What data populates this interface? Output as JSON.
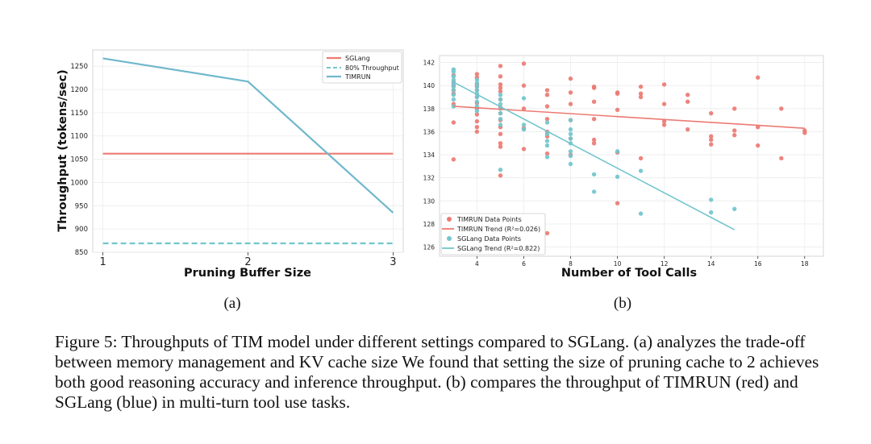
{
  "chart_data": [
    {
      "type": "line",
      "subfig_label": "(a)",
      "xlabel": "Pruning Buffer Size",
      "ylabel": "Throughput (tokens/sec)",
      "xlim": [
        0.93,
        3.07
      ],
      "ylim": [
        850,
        1285
      ],
      "xticks": [
        "1",
        "2",
        "3"
      ],
      "yticks": [
        "850",
        "900",
        "950",
        "1000",
        "1050",
        "1100",
        "1150",
        "1200",
        "1250"
      ],
      "series": [
        {
          "name": "SGLang",
          "color": "#ec7a73",
          "style": "solid",
          "x": [
            1,
            2,
            3
          ],
          "values": [
            1062,
            1062,
            1062
          ]
        },
        {
          "name": "80% Throughput",
          "color": "#72c6cd",
          "style": "dashed",
          "x": [
            1,
            2,
            3
          ],
          "values": [
            869,
            869,
            869
          ]
        },
        {
          "name": "TIMRUN",
          "color": "#70b8cc",
          "style": "solid",
          "x": [
            1,
            2,
            3
          ],
          "values": [
            1267,
            1217,
            935
          ]
        }
      ],
      "legend_position": "top-right"
    },
    {
      "type": "scatter",
      "subfig_label": "(b)",
      "xlabel": "Number of Tool Calls",
      "ylabel": "",
      "xlim": [
        2.4,
        18.8
      ],
      "ylim": [
        125.2,
        142.6
      ],
      "xticks": [
        "4",
        "6",
        "8",
        "10",
        "12",
        "14",
        "16",
        "18"
      ],
      "yticks": [
        "126",
        "128",
        "130",
        "132",
        "134",
        "136",
        "138",
        "140",
        "142"
      ],
      "series": [
        {
          "name": "TIMRUN Data Points",
          "color": "#ec7a73",
          "points": [
            [
              3,
              133.6
            ],
            [
              3,
              136.8
            ],
            [
              3,
              139.6
            ],
            [
              3,
              140.9
            ],
            [
              3,
              140.3
            ],
            [
              3,
              140.0
            ],
            [
              3,
              138.4
            ],
            [
              3,
              139.3
            ],
            [
              4,
              141.0
            ],
            [
              4,
              140.7
            ],
            [
              4,
              140.1
            ],
            [
              4,
              139.6
            ],
            [
              4,
              139.0
            ],
            [
              4,
              138.5
            ],
            [
              4,
              138.0
            ],
            [
              4,
              137.5
            ],
            [
              4,
              136.9
            ],
            [
              4,
              136.4
            ],
            [
              4,
              136.0
            ],
            [
              4,
              139.9
            ],
            [
              5,
              141.7
            ],
            [
              5,
              140.8
            ],
            [
              5,
              140.1
            ],
            [
              5,
              139.5
            ],
            [
              5,
              138.8
            ],
            [
              5,
              138.1
            ],
            [
              5,
              137.6
            ],
            [
              5,
              137.0
            ],
            [
              5,
              136.4
            ],
            [
              5,
              135.8
            ],
            [
              5,
              135.0
            ],
            [
              5,
              134.7
            ],
            [
              5,
              132.2
            ],
            [
              5,
              139.8
            ],
            [
              6,
              141.9
            ],
            [
              6,
              140.0
            ],
            [
              6,
              138.0
            ],
            [
              6,
              136.3
            ],
            [
              6,
              134.5
            ],
            [
              7,
              139.6
            ],
            [
              7,
              139.2
            ],
            [
              7,
              138.2
            ],
            [
              7,
              137.1
            ],
            [
              7,
              136.0
            ],
            [
              7,
              135.6
            ],
            [
              7,
              134.1
            ],
            [
              7,
              127.2
            ],
            [
              8,
              140.6
            ],
            [
              8,
              139.4
            ],
            [
              8,
              138.4
            ],
            [
              8,
              137.0
            ],
            [
              8,
              135.4
            ],
            [
              8,
              134.0
            ],
            [
              9,
              139.9
            ],
            [
              9,
              139.8
            ],
            [
              9,
              138.6
            ],
            [
              9,
              137.1
            ],
            [
              9,
              135.3
            ],
            [
              9,
              135.0
            ],
            [
              10,
              139.4
            ],
            [
              10,
              139.3
            ],
            [
              10,
              137.9
            ],
            [
              10,
              134.2
            ],
            [
              10,
              129.8
            ],
            [
              11,
              139.9
            ],
            [
              11,
              139.3
            ],
            [
              11,
              139.0
            ],
            [
              11,
              133.7
            ],
            [
              12,
              140.1
            ],
            [
              12,
              138.4
            ],
            [
              12,
              136.9
            ],
            [
              12,
              136.6
            ],
            [
              13,
              139.2
            ],
            [
              13,
              138.6
            ],
            [
              13,
              136.2
            ],
            [
              14,
              137.6
            ],
            [
              14,
              135.6
            ],
            [
              14,
              135.3
            ],
            [
              14,
              134.9
            ],
            [
              15,
              138.0
            ],
            [
              15,
              136.1
            ],
            [
              15,
              135.7
            ],
            [
              16,
              140.7
            ],
            [
              16,
              136.4
            ],
            [
              16,
              134.8
            ],
            [
              17,
              138.0
            ],
            [
              17,
              133.7
            ],
            [
              18,
              136.1
            ],
            [
              18,
              135.9
            ]
          ]
        },
        {
          "name": "SGLang Data Points",
          "color": "#72c6cd",
          "points": [
            [
              3,
              141.4
            ],
            [
              3,
              141.2
            ],
            [
              3,
              140.8
            ],
            [
              3,
              140.5
            ],
            [
              3,
              140.2
            ],
            [
              3,
              139.9
            ],
            [
              3,
              139.6
            ],
            [
              3,
              139.2
            ],
            [
              3,
              138.8
            ],
            [
              3,
              138.2
            ],
            [
              4,
              140.5
            ],
            [
              4,
              140.2
            ],
            [
              4,
              139.9
            ],
            [
              4,
              139.6
            ],
            [
              4,
              139.3
            ],
            [
              4,
              139.0
            ],
            [
              4,
              138.6
            ],
            [
              4,
              138.2
            ],
            [
              4,
              137.8
            ],
            [
              5,
              139.2
            ],
            [
              5,
              138.8
            ],
            [
              5,
              138.4
            ],
            [
              5,
              138.0
            ],
            [
              5,
              137.6
            ],
            [
              5,
              137.1
            ],
            [
              5,
              136.6
            ],
            [
              5,
              132.7
            ],
            [
              6,
              138.9
            ],
            [
              6,
              136.6
            ],
            [
              6,
              136.2
            ],
            [
              7,
              136.8
            ],
            [
              7,
              135.8
            ],
            [
              7,
              135.2
            ],
            [
              7,
              134.8
            ],
            [
              7,
              133.8
            ],
            [
              8,
              137.0
            ],
            [
              8,
              136.2
            ],
            [
              8,
              135.8
            ],
            [
              8,
              135.4
            ],
            [
              8,
              135.0
            ],
            [
              8,
              134.3
            ],
            [
              8,
              133.9
            ],
            [
              8,
              133.2
            ],
            [
              9,
              132.3
            ],
            [
              9,
              130.8
            ],
            [
              10,
              134.3
            ],
            [
              10,
              132.1
            ],
            [
              11,
              132.6
            ],
            [
              11,
              128.9
            ],
            [
              14,
              130.1
            ],
            [
              14,
              129.0
            ],
            [
              15,
              129.3
            ]
          ]
        },
        {
          "name": "TIMRUN Trend (R²=0.026)",
          "color": "#ec7a73",
          "style": "line",
          "x": [
            3,
            18
          ],
          "values": [
            138.2,
            136.3
          ]
        },
        {
          "name": "SGLang Trend (R²=0.822)",
          "color": "#72c6cd",
          "style": "line",
          "x": [
            3,
            15
          ],
          "values": [
            140.3,
            127.5
          ]
        }
      ],
      "legend_position": "bottom-left"
    }
  ],
  "caption": "Figure 5: Throughputs of TIM model under different settings compared to SGLang. (a) analyzes the trade-off between memory management and KV cache size We found that setting the size of pruning cache to 2 achieves both good reasoning accuracy and inference throughput. (b) compares the throughput of TIMRUN (red) and SGLang (blue) in multi-turn tool use tasks."
}
